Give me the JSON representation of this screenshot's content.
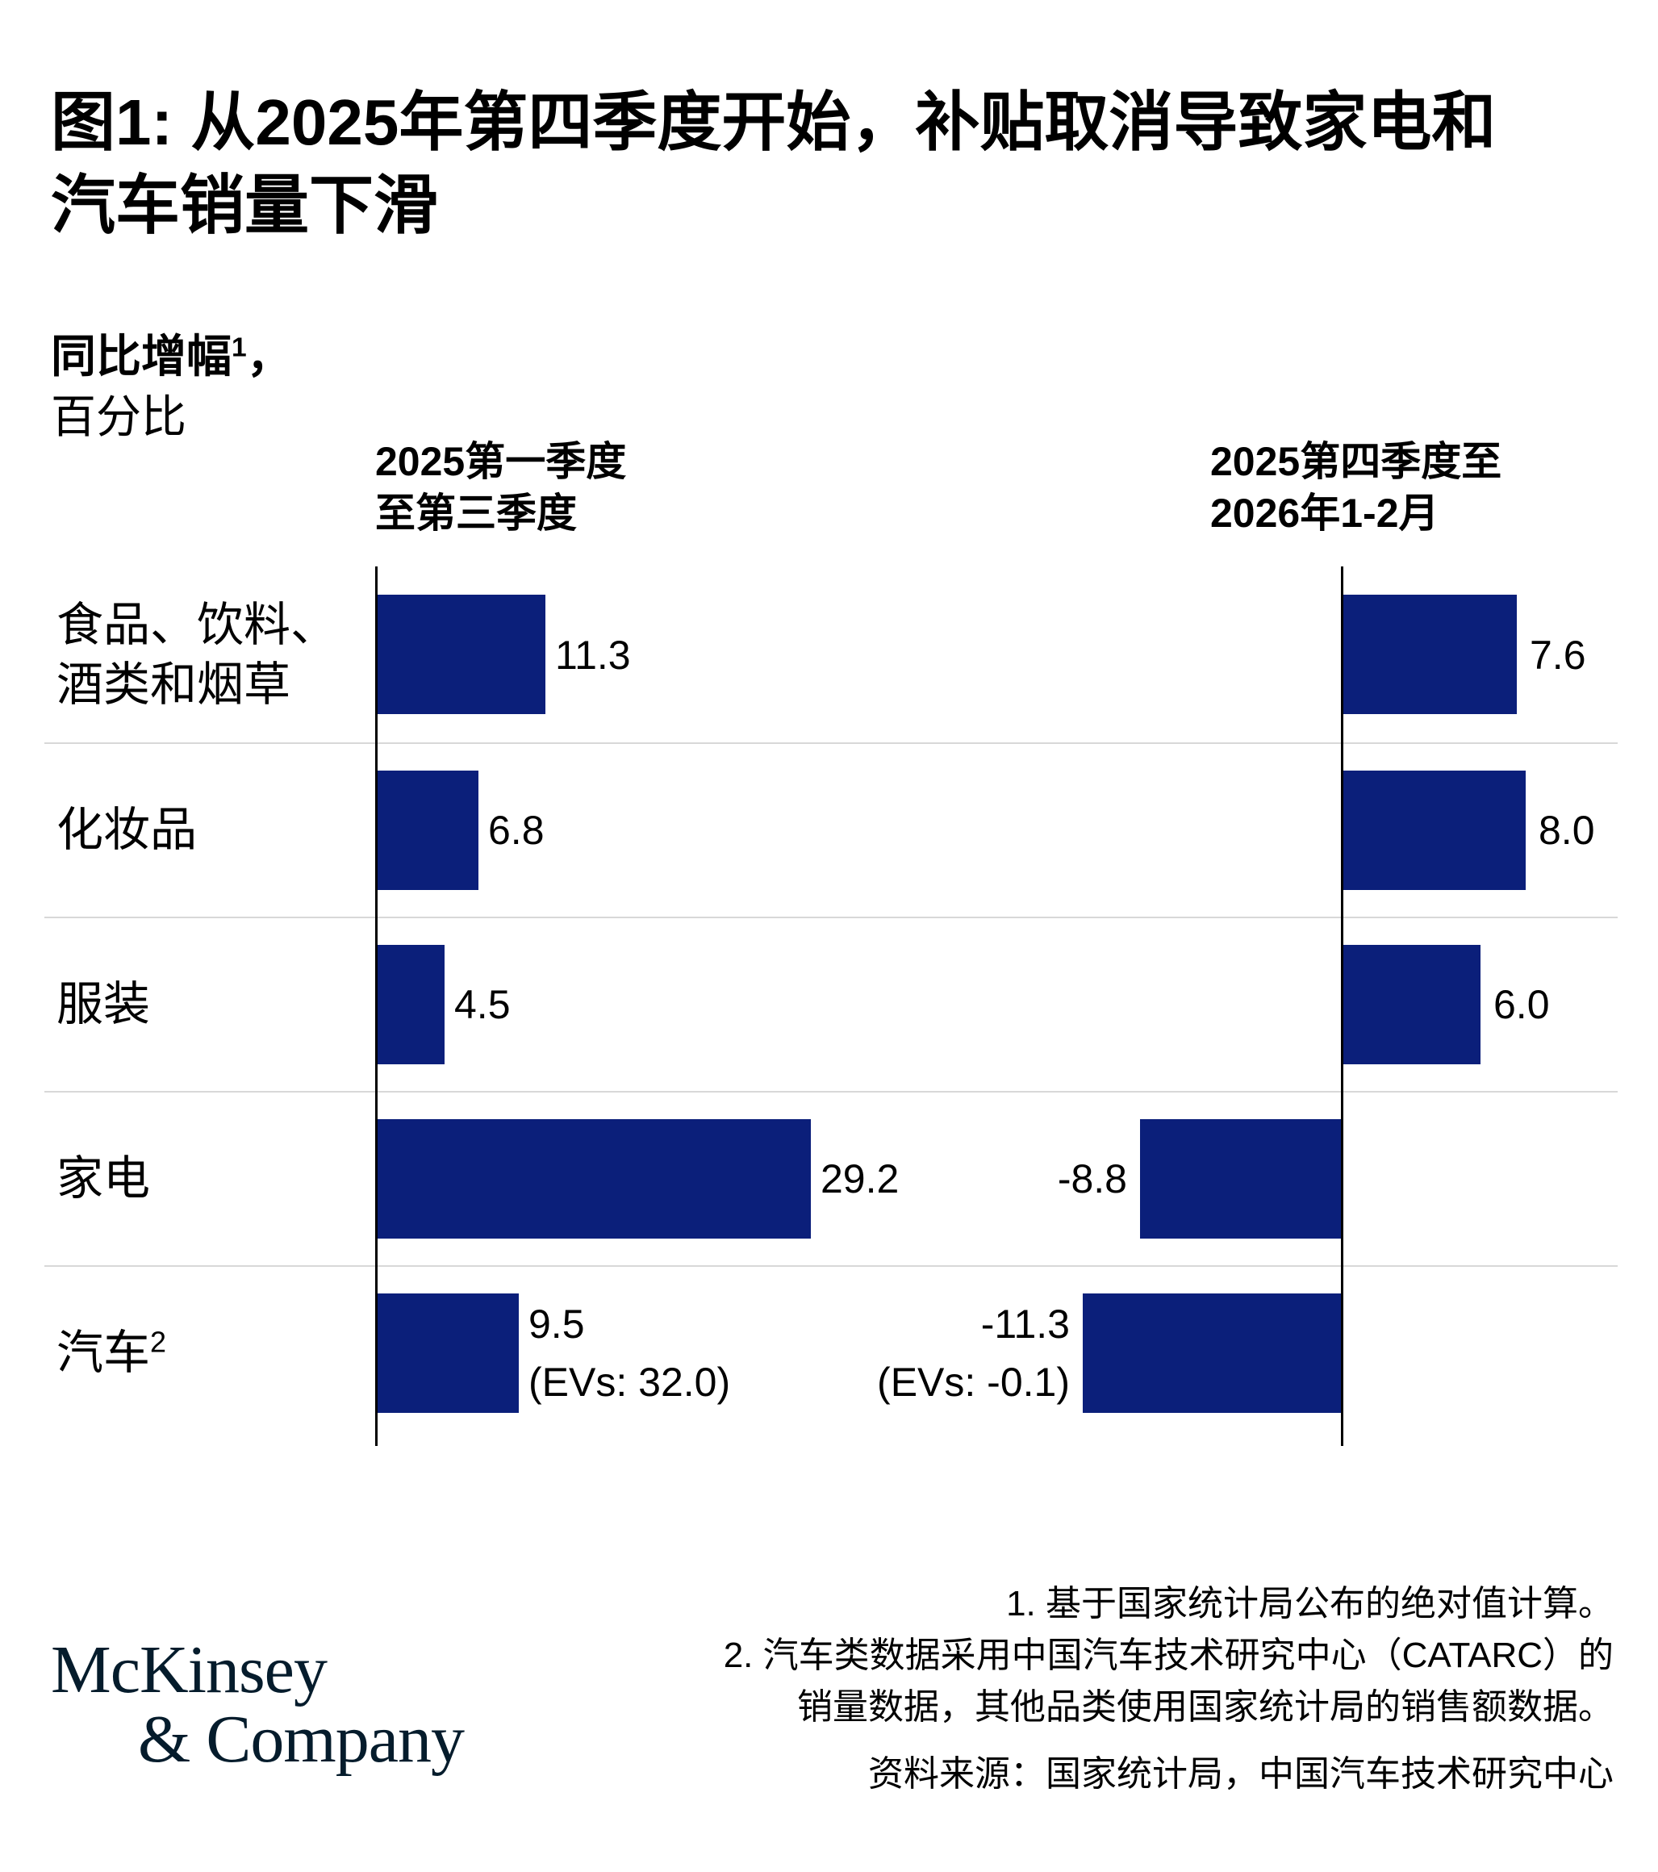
{
  "title": {
    "line1": "图1: 从2025年第四季度开始，补贴取消导致家电和",
    "line2": "汽车销量下滑"
  },
  "subtitle": {
    "metric": "同比增幅",
    "metric_sup": "1",
    "comma": "，",
    "unit": "百分比"
  },
  "panels": [
    {
      "header_line1": "2025第一季度",
      "header_line2": "至第三季度"
    },
    {
      "header_line1": "2025第四季度至",
      "header_line2": "2026年1-2月"
    }
  ],
  "chart_data": {
    "type": "bar",
    "orientation": "horizontal",
    "value_unit": "percent, year-over-year growth",
    "categories": [
      "食品、饮料、酒类和烟草",
      "化妆品",
      "服装",
      "家电",
      "汽车"
    ],
    "category_display": [
      {
        "lines": [
          "食品、饮料、",
          "酒类和烟草"
        ],
        "sup": ""
      },
      {
        "lines": [
          "化妆品"
        ],
        "sup": ""
      },
      {
        "lines": [
          "服装"
        ],
        "sup": ""
      },
      {
        "lines": [
          "家电"
        ],
        "sup": ""
      },
      {
        "lines": [
          "汽车"
        ],
        "sup": "2"
      }
    ],
    "series": [
      {
        "name": "2025第一季度至第三季度",
        "values": [
          11.3,
          6.8,
          4.5,
          29.2,
          9.5
        ],
        "labels": [
          "11.3",
          "6.8",
          "4.5",
          "29.2",
          "9.5"
        ],
        "sublabels": [
          "",
          "",
          "",
          "",
          "(EVs: 32.0)"
        ]
      },
      {
        "name": "2025第四季度至2026年1-2月",
        "values": [
          7.6,
          8.0,
          6.0,
          -8.8,
          -11.3
        ],
        "labels": [
          "7.6",
          "8.0",
          "6.0",
          "-8.8",
          "-11.3"
        ],
        "sublabels": [
          "",
          "",
          "",
          "",
          "(EVs: -0.1)"
        ]
      }
    ],
    "axis": {
      "gridlines": false,
      "zero_baseline_shown": true,
      "row_separators": true
    }
  },
  "footnotes": {
    "note1": "1. 基于国家统计局公布的绝对值计算。",
    "note2_line1": "2. 汽车类数据采用中国汽车技术研究中心（CATARC）的",
    "note2_line2": "销量数据，其他品类使用国家统计局的销售额数据。",
    "source": "资料来源：国家统计局，中国汽车技术研究中心"
  },
  "logo": {
    "line1": "McKinsey",
    "line2": "& Company"
  },
  "colors": {
    "bar": "#0B1F7A",
    "logo": "#051C2C",
    "separator": "#D8D8D8",
    "axis": "#000000"
  }
}
